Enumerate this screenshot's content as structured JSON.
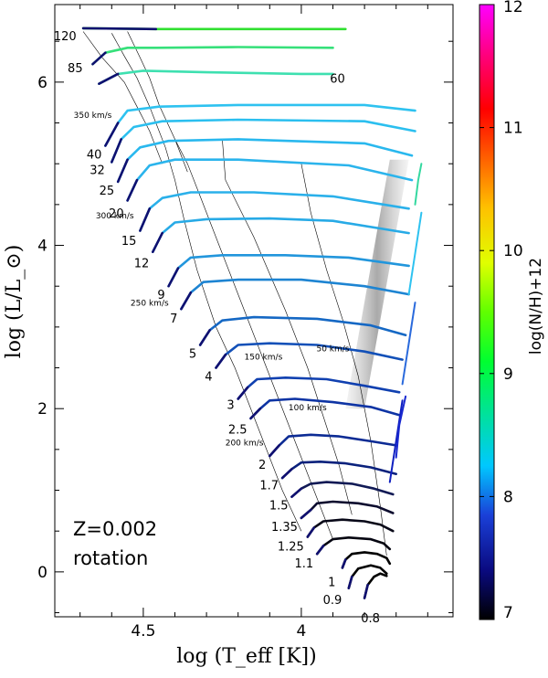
{
  "chart_data": {
    "type": "line",
    "title": "",
    "xlabel": "log (T_eff [K])",
    "ylabel": "log (L/L_⊙)",
    "xlim": [
      4.78,
      3.52
    ],
    "ylim": [
      -0.55,
      6.95
    ],
    "xticks": [
      4.5,
      4.0
    ],
    "yticks": [
      0,
      2,
      4,
      6
    ],
    "xtick_labels": [
      "4.5",
      "4",
      ""
    ],
    "ytick_labels": [
      "0",
      "2",
      "4",
      "6"
    ],
    "colorbar": {
      "label": "log(N/H)+12",
      "range": [
        7,
        12
      ],
      "ticks": [
        "7",
        "8",
        "9",
        "10",
        "11",
        "12"
      ],
      "colors": [
        "#000000",
        "#1818c8",
        "#00bfff",
        "#00ff60",
        "#ffe000",
        "#ff0000",
        "#ff00ff"
      ]
    },
    "annotations": {
      "metallicity": "Z=0.002",
      "model": "rotation"
    },
    "masses": [
      {
        "label": "120",
        "logT": 4.7,
        "logL": 6.57
      },
      {
        "label": "85",
        "logT": 4.68,
        "logL": 6.18
      },
      {
        "label": "60",
        "logT": 3.85,
        "logL": 6.05
      },
      {
        "label": "40",
        "logT": 4.62,
        "logL": 5.12
      },
      {
        "label": "32",
        "logT": 4.61,
        "logL": 4.93
      },
      {
        "label": "25",
        "logT": 4.58,
        "logL": 4.68
      },
      {
        "label": "20",
        "logT": 4.55,
        "logL": 4.4
      },
      {
        "label": "15",
        "logT": 4.51,
        "logL": 4.06
      },
      {
        "label": "12",
        "logT": 4.47,
        "logL": 3.79
      },
      {
        "label": "9",
        "logT": 4.42,
        "logL": 3.4
      },
      {
        "label": "7",
        "logT": 4.38,
        "logL": 3.11
      },
      {
        "label": "5",
        "logT": 4.32,
        "logL": 2.68
      },
      {
        "label": "4",
        "logT": 4.27,
        "logL": 2.4
      },
      {
        "label": "3",
        "logT": 4.2,
        "logL": 2.05
      },
      {
        "label": "2.5",
        "logT": 4.16,
        "logL": 1.75
      },
      {
        "label": "2",
        "logT": 4.1,
        "logL": 1.32
      },
      {
        "label": "1.7",
        "logT": 4.06,
        "logL": 1.07
      },
      {
        "label": "1.5",
        "logT": 4.03,
        "logL": 0.82
      },
      {
        "label": "1.35",
        "logT": 4.0,
        "logL": 0.56
      },
      {
        "label": "1.25",
        "logT": 3.98,
        "logL": 0.32
      },
      {
        "label": "1.1",
        "logT": 3.95,
        "logL": 0.11
      },
      {
        "label": "1",
        "logT": 3.88,
        "logL": -0.12
      },
      {
        "label": "0.9",
        "logT": 3.86,
        "logL": -0.34
      },
      {
        "label": "0.8",
        "logT": 3.74,
        "logL": -0.56
      }
    ],
    "velocity_labels": [
      {
        "label": "350 km/s",
        "logT": 4.66,
        "logL": 5.56
      },
      {
        "label": "300 km/s",
        "logT": 4.59,
        "logL": 4.33
      },
      {
        "label": "250 km/s",
        "logT": 4.48,
        "logL": 3.26
      },
      {
        "label": "200 km/s",
        "logT": 4.18,
        "logL": 1.55
      },
      {
        "label": "150 km/s",
        "logT": 4.12,
        "logL": 2.6
      },
      {
        "label": "100 km/s",
        "logT": 3.98,
        "logL": 1.98
      },
      {
        "label": "50 km/s",
        "logT": 3.9,
        "logL": 2.7
      }
    ],
    "tracks": [
      {
        "mass": "120",
        "color": "#30e030",
        "points": [
          [
            4.69,
            6.66
          ],
          [
            4.46,
            6.65
          ],
          [
            4.2,
            6.65
          ],
          [
            3.86,
            6.65
          ]
        ]
      },
      {
        "mass": "85",
        "color": "#36e07a",
        "points": [
          [
            4.66,
            6.22
          ],
          [
            4.62,
            6.36
          ],
          [
            4.55,
            6.42
          ],
          [
            4.46,
            6.42
          ],
          [
            4.2,
            6.43
          ],
          [
            3.9,
            6.42
          ]
        ]
      },
      {
        "mass": "60",
        "color": "#3ee0b0",
        "points": [
          [
            4.64,
            5.98
          ],
          [
            4.58,
            6.1
          ],
          [
            4.5,
            6.14
          ],
          [
            4.3,
            6.12
          ],
          [
            4.0,
            6.1
          ],
          [
            3.9,
            6.1
          ]
        ]
      },
      {
        "mass": "40",
        "color": "#2ec2f0",
        "points": [
          [
            4.62,
            5.22
          ],
          [
            4.58,
            5.5
          ],
          [
            4.55,
            5.65
          ],
          [
            4.45,
            5.7
          ],
          [
            4.2,
            5.72
          ],
          [
            3.8,
            5.72
          ],
          [
            3.64,
            5.65
          ]
        ]
      },
      {
        "mass": "32",
        "color": "#2bbfef",
        "points": [
          [
            4.6,
            5.02
          ],
          [
            4.57,
            5.3
          ],
          [
            4.53,
            5.45
          ],
          [
            4.44,
            5.52
          ],
          [
            4.2,
            5.54
          ],
          [
            3.8,
            5.52
          ],
          [
            3.64,
            5.4
          ]
        ]
      },
      {
        "mass": "25",
        "color": "#29b8ee",
        "points": [
          [
            4.58,
            4.78
          ],
          [
            4.55,
            5.05
          ],
          [
            4.51,
            5.2
          ],
          [
            4.42,
            5.28
          ],
          [
            4.2,
            5.3
          ],
          [
            3.8,
            5.25
          ],
          [
            3.65,
            5.1
          ]
        ]
      },
      {
        "mass": "20",
        "color": "#2bb4ec",
        "points": [
          [
            4.55,
            4.55
          ],
          [
            4.52,
            4.8
          ],
          [
            4.48,
            4.98
          ],
          [
            4.4,
            5.05
          ],
          [
            4.2,
            5.05
          ],
          [
            3.85,
            4.98
          ],
          [
            3.65,
            4.8
          ]
        ]
      },
      {
        "mass": "15",
        "color": "#2ab0ea",
        "points": [
          [
            4.51,
            4.18
          ],
          [
            4.48,
            4.45
          ],
          [
            4.44,
            4.58
          ],
          [
            4.35,
            4.65
          ],
          [
            4.15,
            4.65
          ],
          [
            3.9,
            4.6
          ],
          [
            3.66,
            4.45
          ]
        ]
      },
      {
        "mass": "12",
        "color": "#27aae6",
        "points": [
          [
            4.47,
            3.92
          ],
          [
            4.44,
            4.15
          ],
          [
            4.4,
            4.28
          ],
          [
            4.3,
            4.32
          ],
          [
            4.1,
            4.33
          ],
          [
            3.9,
            4.3
          ],
          [
            3.66,
            4.15
          ]
        ]
      },
      {
        "mass": "9",
        "color": "#2296dc",
        "points": [
          [
            4.42,
            3.5
          ],
          [
            4.39,
            3.72
          ],
          [
            4.35,
            3.85
          ],
          [
            4.25,
            3.88
          ],
          [
            4.05,
            3.88
          ],
          [
            3.85,
            3.85
          ],
          [
            3.66,
            3.75
          ]
        ]
      },
      {
        "mass": "7",
        "color": "#1d84d2",
        "points": [
          [
            4.38,
            3.22
          ],
          [
            4.35,
            3.42
          ],
          [
            4.31,
            3.55
          ],
          [
            4.2,
            3.58
          ],
          [
            4.0,
            3.58
          ],
          [
            3.8,
            3.5
          ],
          [
            3.66,
            3.4
          ]
        ]
      },
      {
        "mass": "5",
        "color": "#1568c4",
        "points": [
          [
            4.32,
            2.78
          ],
          [
            4.29,
            2.96
          ],
          [
            4.25,
            3.08
          ],
          [
            4.15,
            3.12
          ],
          [
            3.95,
            3.1
          ],
          [
            3.78,
            3.02
          ],
          [
            3.67,
            2.9
          ]
        ]
      },
      {
        "mass": "4",
        "color": "#1250b8",
        "points": [
          [
            4.27,
            2.5
          ],
          [
            4.24,
            2.66
          ],
          [
            4.2,
            2.78
          ],
          [
            4.1,
            2.8
          ],
          [
            3.95,
            2.78
          ],
          [
            3.8,
            2.7
          ],
          [
            3.68,
            2.6
          ]
        ]
      },
      {
        "mass": "3",
        "color": "#1040b0",
        "points": [
          [
            4.2,
            2.12
          ],
          [
            4.17,
            2.26
          ],
          [
            4.14,
            2.36
          ],
          [
            4.05,
            2.38
          ],
          [
            3.92,
            2.36
          ],
          [
            3.8,
            2.28
          ],
          [
            3.69,
            2.2
          ]
        ]
      },
      {
        "mass": "2.5",
        "color": "#0e34a4",
        "points": [
          [
            4.16,
            1.88
          ],
          [
            4.13,
            2.0
          ],
          [
            4.1,
            2.1
          ],
          [
            4.02,
            2.12
          ],
          [
            3.9,
            2.08
          ],
          [
            3.78,
            2.02
          ],
          [
            3.69,
            1.92
          ]
        ]
      },
      {
        "mass": "2",
        "color": "#0c2b94",
        "points": [
          [
            4.1,
            1.42
          ],
          [
            4.07,
            1.55
          ],
          [
            4.04,
            1.66
          ],
          [
            3.97,
            1.68
          ],
          [
            3.88,
            1.66
          ],
          [
            3.78,
            1.6
          ],
          [
            3.7,
            1.55
          ]
        ]
      },
      {
        "mass": "1.7",
        "color": "#0a217c",
        "points": [
          [
            4.06,
            1.15
          ],
          [
            4.03,
            1.26
          ],
          [
            4.0,
            1.34
          ],
          [
            3.94,
            1.35
          ],
          [
            3.86,
            1.33
          ],
          [
            3.78,
            1.28
          ],
          [
            3.7,
            1.2
          ]
        ]
      },
      {
        "mass": "1.5",
        "color": "#111a55",
        "points": [
          [
            4.03,
            0.92
          ],
          [
            4.0,
            1.02
          ],
          [
            3.97,
            1.08
          ],
          [
            3.92,
            1.1
          ],
          [
            3.84,
            1.08
          ],
          [
            3.77,
            1.02
          ],
          [
            3.71,
            0.95
          ]
        ]
      },
      {
        "mass": "1.35",
        "color": "#0c0c2e",
        "points": [
          [
            4.0,
            0.66
          ],
          [
            3.97,
            0.76
          ],
          [
            3.95,
            0.84
          ],
          [
            3.9,
            0.86
          ],
          [
            3.82,
            0.84
          ],
          [
            3.76,
            0.8
          ],
          [
            3.71,
            0.72
          ]
        ]
      },
      {
        "mass": "1.25",
        "color": "#080818",
        "points": [
          [
            3.98,
            0.43
          ],
          [
            3.96,
            0.54
          ],
          [
            3.93,
            0.62
          ],
          [
            3.87,
            0.64
          ],
          [
            3.8,
            0.62
          ],
          [
            3.75,
            0.58
          ],
          [
            3.71,
            0.5
          ]
        ]
      },
      {
        "mass": "1.1",
        "color": "#050510",
        "points": [
          [
            3.95,
            0.22
          ],
          [
            3.93,
            0.32
          ],
          [
            3.9,
            0.4
          ],
          [
            3.85,
            0.42
          ],
          [
            3.78,
            0.4
          ],
          [
            3.74,
            0.35
          ],
          [
            3.72,
            0.28
          ]
        ]
      },
      {
        "mass": "1",
        "color": "#000000",
        "points": [
          [
            3.87,
            0.05
          ],
          [
            3.86,
            0.15
          ],
          [
            3.84,
            0.22
          ],
          [
            3.8,
            0.24
          ],
          [
            3.76,
            0.22
          ],
          [
            3.73,
            0.17
          ],
          [
            3.72,
            0.1
          ]
        ]
      },
      {
        "mass": "0.9",
        "color": "#000000",
        "points": [
          [
            3.85,
            -0.2
          ],
          [
            3.84,
            -0.06
          ],
          [
            3.82,
            0.04
          ],
          [
            3.78,
            0.08
          ],
          [
            3.75,
            0.05
          ],
          [
            3.73,
            -0.02
          ]
        ]
      },
      {
        "mass": "0.8",
        "color": "#000000",
        "points": [
          [
            3.8,
            -0.32
          ],
          [
            3.79,
            -0.16
          ],
          [
            3.77,
            -0.06
          ],
          [
            3.75,
            -0.02
          ],
          [
            3.73,
            -0.05
          ]
        ]
      }
    ],
    "rgb_tracks": [
      {
        "color": "#1020c0",
        "points": [
          [
            3.72,
            1.1
          ],
          [
            3.7,
            1.6
          ],
          [
            3.68,
            2.1
          ]
        ]
      },
      {
        "color": "#1828d0",
        "points": [
          [
            3.7,
            1.4
          ],
          [
            3.69,
            1.8
          ],
          [
            3.67,
            2.15
          ]
        ]
      },
      {
        "color": "#2a6adc",
        "points": [
          [
            3.68,
            2.3
          ],
          [
            3.66,
            2.8
          ],
          [
            3.64,
            3.3
          ]
        ]
      },
      {
        "color": "#2ec2f0",
        "points": [
          [
            3.66,
            3.4
          ],
          [
            3.64,
            3.9
          ],
          [
            3.62,
            4.4
          ]
        ]
      },
      {
        "color": "#34d8a0",
        "points": [
          [
            3.64,
            4.5
          ],
          [
            3.63,
            4.8
          ],
          [
            3.62,
            5.0
          ]
        ]
      }
    ],
    "isochrones": [
      [
        [
          4.69,
          6.62
        ],
        [
          4.63,
          6.3
        ],
        [
          4.56,
          6.0
        ],
        [
          4.52,
          5.7
        ],
        [
          4.48,
          5.4
        ],
        [
          4.44,
          5.0
        ]
      ],
      [
        [
          4.6,
          6.6
        ],
        [
          4.56,
          6.32
        ],
        [
          4.52,
          6.05
        ],
        [
          4.48,
          5.7
        ]
      ],
      [
        [
          4.55,
          6.62
        ],
        [
          4.51,
          6.3
        ],
        [
          4.48,
          6.05
        ],
        [
          4.45,
          5.72
        ],
        [
          4.4,
          5.3
        ],
        [
          4.36,
          4.9
        ]
      ],
      [
        [
          4.48,
          5.7
        ],
        [
          4.46,
          5.5
        ],
        [
          4.43,
          5.2
        ],
        [
          4.4,
          4.8
        ],
        [
          4.37,
          4.3
        ],
        [
          4.33,
          3.7
        ],
        [
          4.27,
          3.0
        ],
        [
          4.21,
          2.5
        ],
        [
          4.13,
          1.7
        ],
        [
          4.06,
          1.0
        ],
        [
          4.0,
          0.5
        ]
      ],
      [
        [
          4.4,
          5.3
        ],
        [
          4.36,
          5.0
        ],
        [
          4.32,
          4.6
        ],
        [
          4.26,
          4.0
        ],
        [
          4.2,
          3.4
        ],
        [
          4.12,
          2.6
        ],
        [
          4.04,
          1.8
        ],
        [
          3.96,
          1.0
        ],
        [
          3.9,
          0.4
        ]
      ],
      [
        [
          4.25,
          5.3
        ],
        [
          4.24,
          4.8
        ],
        [
          4.15,
          4.1
        ],
        [
          4.05,
          3.2
        ],
        [
          3.98,
          2.5
        ],
        [
          3.93,
          1.9
        ],
        [
          3.88,
          1.3
        ],
        [
          3.84,
          0.7
        ]
      ],
      [
        [
          4.0,
          5.0
        ],
        [
          3.97,
          4.4
        ],
        [
          3.92,
          3.7
        ],
        [
          3.87,
          3.1
        ],
        [
          3.82,
          2.4
        ],
        [
          3.78,
          1.6
        ],
        [
          3.75,
          0.8
        ],
        [
          3.73,
          0.2
        ]
      ]
    ],
    "instability_strip": [
      [
        3.86,
        2.0
      ],
      [
        3.8,
        2.0
      ],
      [
        3.66,
        5.05
      ],
      [
        3.72,
        5.05
      ]
    ]
  }
}
